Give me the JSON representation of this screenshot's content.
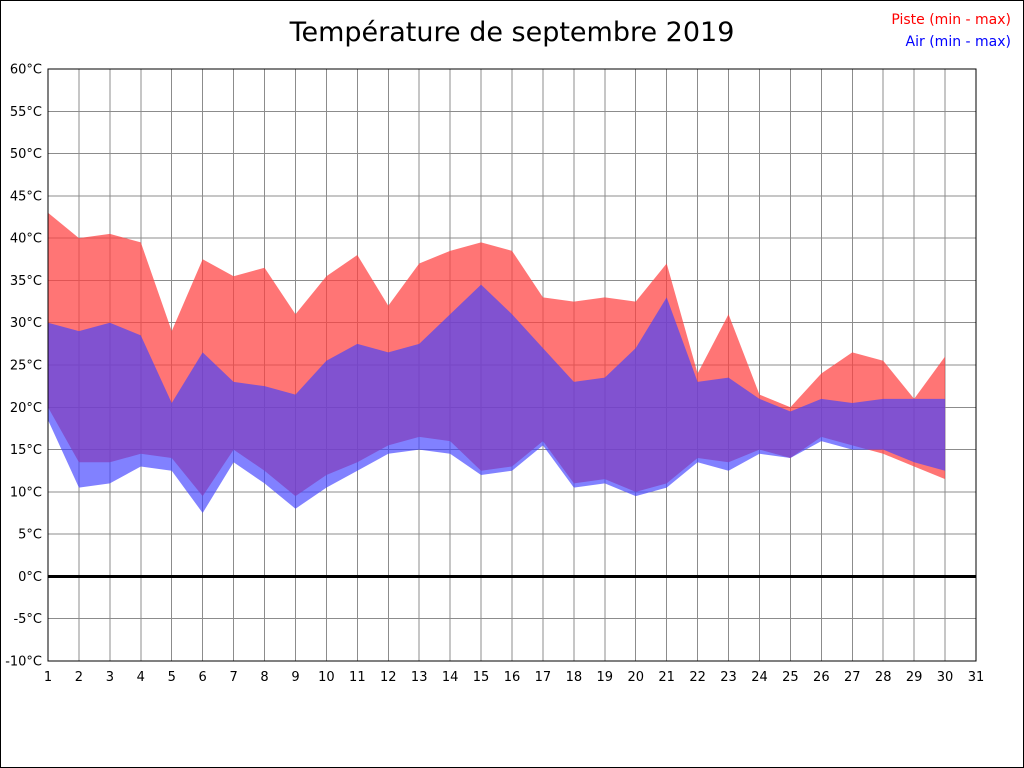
{
  "title": "Température de septembre 2019",
  "legend": [
    {
      "label": "Piste (min - max)",
      "color": "#ff0000"
    },
    {
      "label": "Air (min - max)",
      "color": "#0000ff"
    }
  ],
  "chart_data": {
    "type": "area",
    "title": "Température de septembre 2019",
    "xlabel": "",
    "ylabel": "",
    "xlim": [
      1,
      31
    ],
    "ylim": [
      -10,
      60
    ],
    "ytick_step": 5,
    "ytick_suffix": "°C",
    "grid": true,
    "zero_line": true,
    "legend_position": "top-right",
    "x": [
      1,
      2,
      3,
      4,
      5,
      6,
      7,
      8,
      9,
      10,
      11,
      12,
      13,
      14,
      15,
      16,
      17,
      18,
      19,
      20,
      21,
      22,
      23,
      24,
      25,
      26,
      27,
      28,
      29,
      30
    ],
    "series": [
      {
        "name": "Piste (min - max)",
        "fill": "#ff4040",
        "opacity": 0.72,
        "max": [
          43,
          40,
          40.5,
          39.5,
          29,
          37.5,
          35.5,
          36.5,
          31,
          35.5,
          38,
          32,
          37,
          38.5,
          39.5,
          38.5,
          33,
          32.5,
          33,
          32.5,
          37,
          24,
          31,
          21.5,
          20,
          24,
          26.5,
          25.5,
          21,
          26
        ],
        "min": [
          20,
          13.5,
          13.5,
          14.5,
          14,
          9.5,
          15,
          12.5,
          9.5,
          12,
          13.5,
          15.5,
          16.5,
          16,
          12.5,
          13,
          16,
          11,
          11.5,
          10,
          11,
          14,
          13.5,
          15,
          14,
          16.5,
          15.5,
          14.5,
          13,
          11.5
        ]
      },
      {
        "name": "Air (min - max)",
        "fill": "#4040ff",
        "opacity": 0.66,
        "max": [
          30,
          29,
          30,
          28.5,
          20.5,
          26.5,
          23,
          22.5,
          21.5,
          25.5,
          27.5,
          26.5,
          27.5,
          31,
          34.5,
          31,
          27,
          23,
          23.5,
          27,
          33,
          23,
          23.5,
          21,
          19.5,
          21,
          20.5,
          21,
          21,
          21
        ],
        "min": [
          18.5,
          10.5,
          11,
          13,
          12.5,
          7.5,
          13.5,
          11,
          8,
          10.5,
          12.5,
          14.5,
          15,
          14.5,
          12,
          12.5,
          15.5,
          10.5,
          11,
          9.5,
          10.5,
          13.5,
          12.5,
          14.5,
          14,
          16,
          15,
          15,
          13.5,
          12.5
        ]
      }
    ]
  }
}
